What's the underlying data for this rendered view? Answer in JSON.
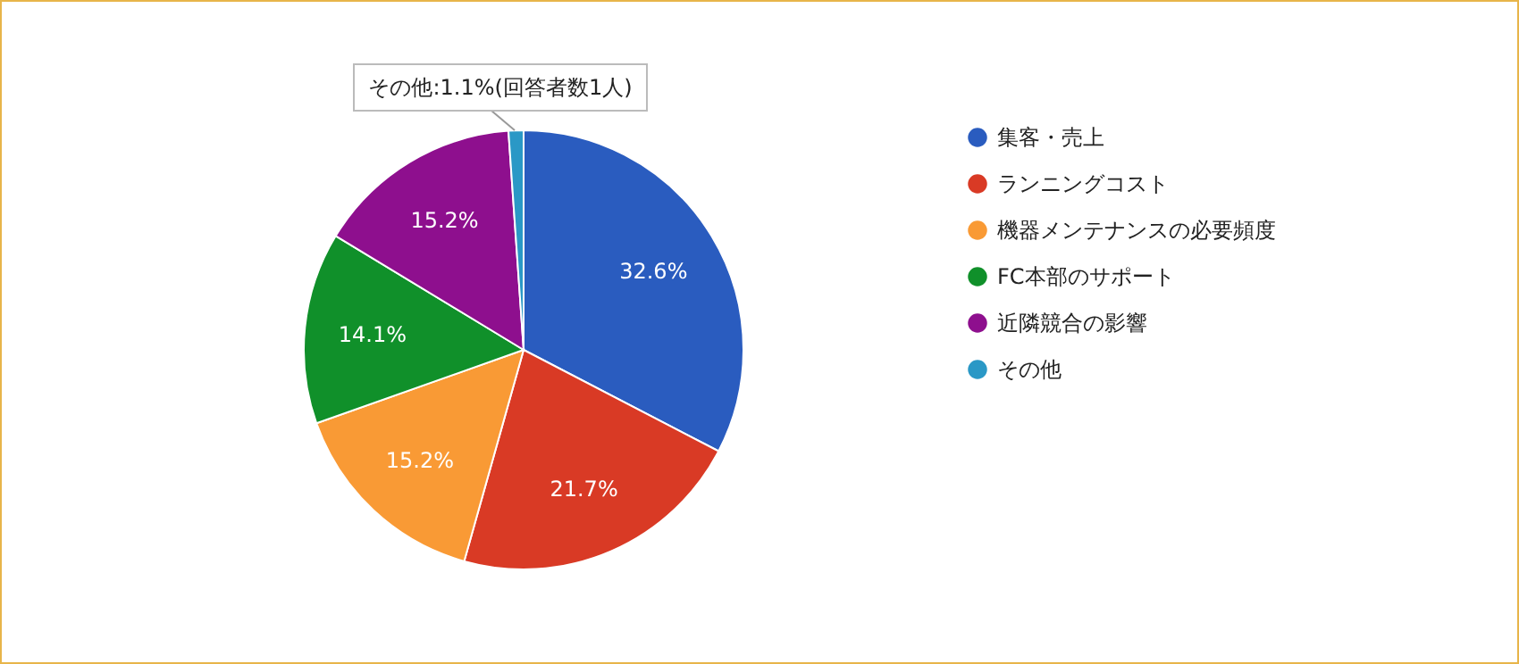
{
  "chart_data": {
    "type": "pie",
    "categories": [
      "集客・売上",
      "ランニングコスト",
      "機器メンテナンスの必要頻度",
      "FC本部のサポート",
      "近隣競合の影響",
      "その他"
    ],
    "values": [
      32.6,
      21.7,
      15.2,
      14.1,
      15.2,
      1.1
    ],
    "colors": [
      "#2a5cbf",
      "#d93a25",
      "#f99a35",
      "#10902a",
      "#8e0f8e",
      "#2a98c6"
    ],
    "value_labels": [
      "32.6%",
      "21.7%",
      "15.2%",
      "14.1%",
      "15.2%",
      null
    ],
    "annotations": [
      "その他:1.1%(回答者数1人)"
    ],
    "legend": "right"
  }
}
